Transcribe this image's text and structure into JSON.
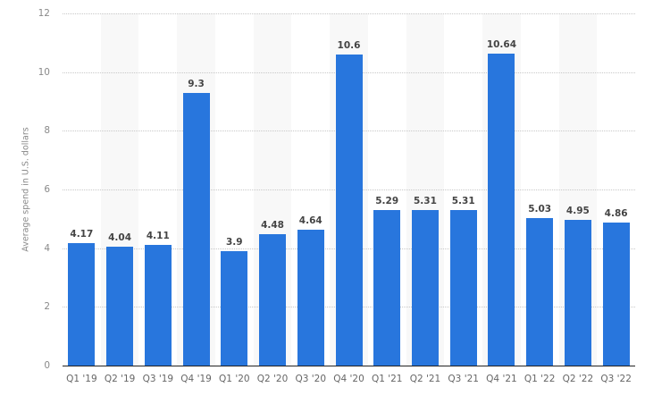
{
  "chart_data": {
    "type": "bar",
    "title": "",
    "xlabel": "",
    "ylabel": "Average spend in U.S. dollars",
    "ylim": [
      0,
      12
    ],
    "yticks": [
      0,
      2,
      4,
      6,
      8,
      10,
      12
    ],
    "grid": true,
    "legend": null,
    "categories": [
      "Q1 '19",
      "Q2 '19",
      "Q3 '19",
      "Q4 '19",
      "Q1 '20",
      "Q2 '20",
      "Q3 '20",
      "Q4 '20",
      "Q1 '21",
      "Q2 '21",
      "Q3 '21",
      "Q4 '21",
      "Q1 '22",
      "Q2 '22",
      "Q3 '22"
    ],
    "values": [
      4.17,
      4.04,
      4.11,
      9.3,
      3.9,
      4.48,
      4.64,
      10.6,
      5.29,
      5.31,
      5.31,
      10.64,
      5.03,
      4.95,
      4.86
    ],
    "value_labels": [
      "4.17",
      "4.04",
      "4.11",
      "9.3",
      "3.9",
      "4.48",
      "4.64",
      "10.6",
      "5.29",
      "5.31",
      "5.31",
      "10.64",
      "5.03",
      "4.95",
      "4.86"
    ]
  },
  "colors": {
    "bar": "#2876dd",
    "band": "#f8f8f8",
    "grid": "#c8c8c8",
    "axis": "#222222"
  }
}
